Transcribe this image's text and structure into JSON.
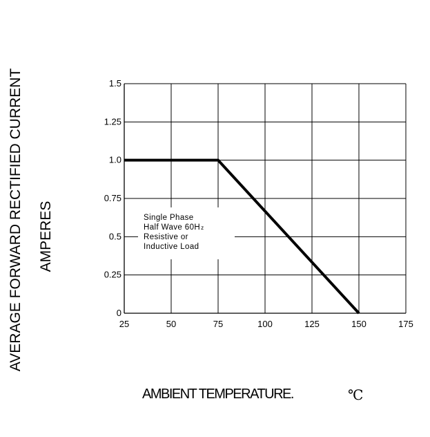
{
  "chart_data": {
    "type": "line",
    "title": "",
    "xlabel": "AMBIENT TEMPERATURE.",
    "xlabel_unit": "℃",
    "ylabel": "AVERAGE FORWARD RECTIFIED CURRENT",
    "ylabel_line2": "AMPERES",
    "xlim": [
      25,
      175
    ],
    "ylim": [
      0,
      1.5
    ],
    "x_ticks": [
      25,
      50,
      75,
      100,
      125,
      150,
      175
    ],
    "x_tick_labels": [
      "25",
      "50",
      "75",
      "100",
      "125",
      "150",
      "175"
    ],
    "y_ticks": [
      0,
      0.25,
      0.5,
      0.75,
      1.0,
      1.25,
      1.5
    ],
    "y_tick_labels": [
      "0",
      "0.25",
      "0.5",
      "0.75",
      "1.0",
      "1.25",
      "1.5"
    ],
    "grid": true,
    "series": [
      {
        "x": [
          25,
          75,
          150
        ],
        "y": [
          1.0,
          1.0,
          0
        ]
      }
    ],
    "annotation": {
      "lines": [
        "Single Phase",
        "Half Wave 60H",
        "Resistive or",
        "Inductive Load"
      ],
      "subscript": "z"
    }
  }
}
